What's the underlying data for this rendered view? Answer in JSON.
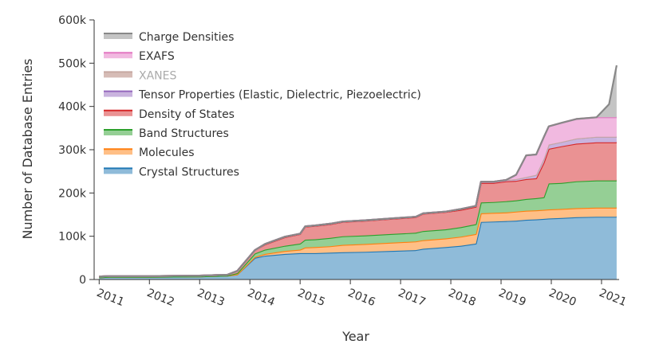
{
  "chart_data": {
    "type": "area",
    "stacked": true,
    "xlabel": "Year",
    "ylabel": "Number of Database Entries",
    "ylim": [
      0,
      600000
    ],
    "xlim": [
      2010.9,
      2021.35
    ],
    "y_ticks": [
      0,
      100000,
      200000,
      300000,
      400000,
      500000,
      600000
    ],
    "y_tick_labels": [
      "0",
      "100k",
      "200k",
      "300k",
      "400k",
      "500k",
      "600k"
    ],
    "x_ticks": [
      2011,
      2012,
      2013,
      2014,
      2015,
      2016,
      2017,
      2018,
      2019,
      2020,
      2021
    ],
    "x_tick_labels": [
      "2011",
      "2012",
      "2013",
      "2014",
      "2015",
      "2016",
      "2017",
      "2018",
      "2019",
      "2020",
      "2021"
    ],
    "legend_position": "top-left",
    "x": [
      2011.0,
      2011.2,
      2012.0,
      2013.0,
      2013.55,
      2013.75,
      2014.1,
      2014.3,
      2014.7,
      2015.0,
      2015.1,
      2015.3,
      2015.6,
      2015.85,
      2016.3,
      2016.8,
      2017.3,
      2017.45,
      2017.9,
      2018.2,
      2018.5,
      2018.6,
      2018.85,
      2019.1,
      2019.3,
      2019.5,
      2019.7,
      2019.85,
      2019.95,
      2020.2,
      2020.5,
      2020.9,
      2021.15,
      2021.3
    ],
    "series": [
      {
        "name": "Crystal Structures",
        "color": "#8fbbd9",
        "line": "#1f77b4",
        "values": [
          5000,
          6000,
          6000,
          7000,
          9000,
          12000,
          50000,
          55000,
          59000,
          61000,
          61000,
          61000,
          62000,
          63000,
          64000,
          66000,
          68000,
          71000,
          75000,
          78000,
          83000,
          133000,
          134000,
          135000,
          136000,
          138000,
          139000,
          140000,
          141000,
          142000,
          144000,
          145000,
          145000,
          145000
        ]
      },
      {
        "name": "Molecules",
        "color": "#ffbf86",
        "line": "#ff7f0e",
        "values": [
          0,
          0,
          0,
          0,
          0,
          0,
          2000,
          4000,
          7000,
          8000,
          13000,
          14000,
          15000,
          17000,
          18000,
          19000,
          20000,
          20000,
          20000,
          21000,
          22000,
          20000,
          20000,
          20000,
          21000,
          21000,
          21000,
          21000,
          21000,
          21000,
          21000,
          21000,
          21000,
          21000
        ]
      },
      {
        "name": "Band Structures",
        "color": "#95cf95",
        "line": "#2ca02c",
        "values": [
          0,
          0,
          0,
          0,
          0,
          3000,
          8000,
          10000,
          12000,
          14000,
          18000,
          18000,
          19000,
          20000,
          20000,
          20000,
          20000,
          21000,
          21000,
          22000,
          23000,
          25000,
          25000,
          26000,
          26000,
          27000,
          28000,
          29000,
          60000,
          60000,
          62000,
          63000,
          63000,
          63000
        ]
      },
      {
        "name": "Density of States",
        "color": "#ea9293",
        "line": "#d62728",
        "values": [
          2000,
          2000,
          2000,
          2000,
          2000,
          5000,
          8000,
          12000,
          20000,
          22000,
          30000,
          31000,
          32000,
          33000,
          34000,
          35000,
          36000,
          40000,
          40000,
          40000,
          40000,
          45000,
          44000,
          46000,
          45000,
          46000,
          46000,
          80000,
          80000,
          85000,
          87000,
          88000,
          88000,
          88000
        ]
      },
      {
        "name": "Tensor Properties (Elastic, Dielectric, Piezoelectric)",
        "color": "#c9b3de",
        "line": "#9467bd",
        "values": [
          0,
          0,
          0,
          0,
          0,
          0,
          0,
          1000,
          1000,
          1000,
          1000,
          1000,
          1000,
          1000,
          1000,
          1000,
          1000,
          1000,
          1000,
          2000,
          2000,
          3000,
          3000,
          3000,
          4000,
          5000,
          8000,
          9000,
          10000,
          10000,
          12000,
          13000,
          13000,
          13000
        ]
      },
      {
        "name": "XANES",
        "color": "#d6bcb6",
        "line": "#c7a9a2",
        "values": [
          0,
          0,
          0,
          0,
          0,
          0,
          0,
          0,
          0,
          0,
          0,
          0,
          0,
          0,
          0,
          0,
          0,
          0,
          0,
          0,
          0,
          0,
          0,
          0,
          0,
          0,
          0,
          0,
          0,
          0,
          0,
          0,
          0,
          0
        ]
      },
      {
        "name": "EXAFS",
        "color": "#f1b9e0",
        "line": "#e377c2",
        "values": [
          0,
          0,
          0,
          0,
          0,
          0,
          0,
          0,
          0,
          0,
          0,
          0,
          0,
          0,
          0,
          0,
          0,
          0,
          0,
          0,
          0,
          0,
          0,
          0,
          10000,
          50000,
          47000,
          50000,
          42000,
          44000,
          45000,
          45000,
          45000,
          45000
        ]
      },
      {
        "name": "Charge Densities",
        "color": "#c4c4c4",
        "line": "#888888",
        "values": [
          0,
          0,
          0,
          0,
          0,
          0,
          0,
          0,
          0,
          0,
          0,
          0,
          0,
          0,
          0,
          0,
          0,
          0,
          0,
          0,
          0,
          0,
          0,
          0,
          0,
          0,
          0,
          0,
          0,
          0,
          0,
          0,
          30000,
          120000
        ]
      }
    ],
    "legend_order": [
      "Charge Densities",
      "EXAFS",
      "XANES",
      "Tensor Properties (Elastic, Dielectric, Piezoelectric)",
      "Density of States",
      "Band Structures",
      "Molecules",
      "Crystal Structures"
    ],
    "legend_muted": [
      "XANES"
    ]
  }
}
